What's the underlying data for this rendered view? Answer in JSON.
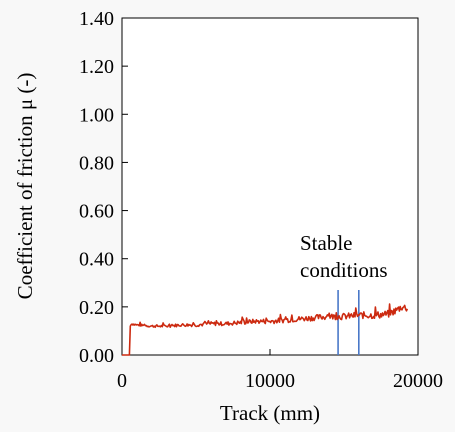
{
  "chart_data": {
    "type": "line",
    "xlabel": "Track (mm)",
    "ylabel": "Coefficient of friction μ (-)",
    "xlim": [
      0,
      20000
    ],
    "ylim": [
      0,
      1.4
    ],
    "x_ticks": [
      "0",
      "10000",
      "20000"
    ],
    "y_ticks": [
      "0.00",
      "0.20",
      "0.40",
      "0.60",
      "0.80",
      "1.00",
      "1.20",
      "1.40"
    ],
    "grid": false,
    "legend": "none",
    "series": [
      {
        "color": "#cc2a10",
        "x": [
          0,
          300,
          500,
          560,
          600,
          1000,
          2000,
          3000,
          4000,
          5000,
          6000,
          7000,
          8000,
          9000,
          10000,
          11000,
          12000,
          13000,
          14000,
          15000,
          16000,
          17000,
          18000,
          18500,
          18900,
          19300
        ],
        "y": [
          0.0,
          0.0,
          0.0,
          0.12,
          0.13,
          0.125,
          0.12,
          0.12,
          0.125,
          0.125,
          0.13,
          0.13,
          0.135,
          0.14,
          0.14,
          0.145,
          0.15,
          0.155,
          0.16,
          0.16,
          0.165,
          0.165,
          0.17,
          0.185,
          0.2,
          0.195
        ]
      }
    ],
    "markers": [
      {
        "x": 14600,
        "color": "#4a78c8"
      },
      {
        "x": 16000,
        "color": "#4a78c8"
      }
    ],
    "marker_ylim": [
      0.0,
      0.27
    ],
    "annotation": {
      "lines": [
        "Stable",
        "conditions"
      ]
    }
  }
}
